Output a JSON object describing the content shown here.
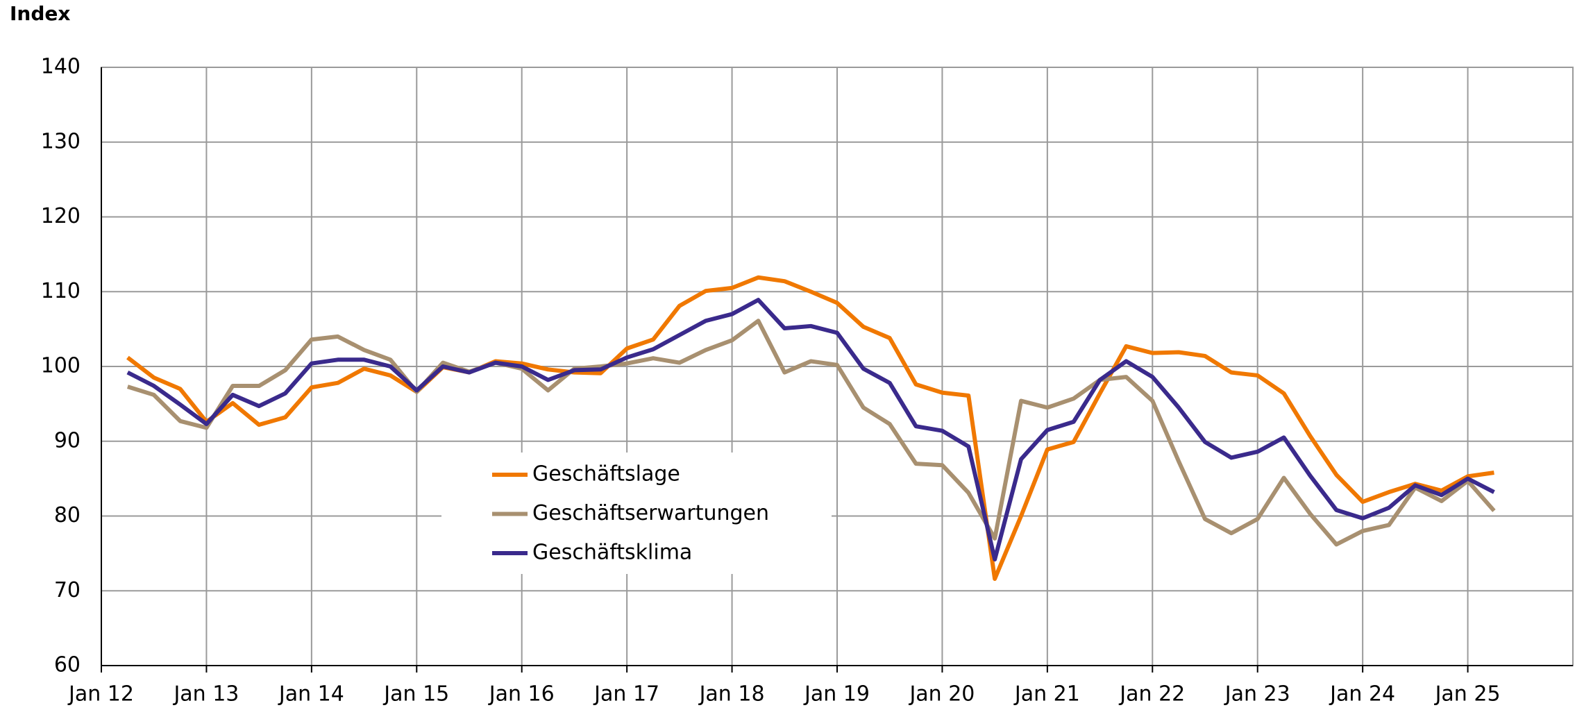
{
  "chart_data": {
    "type": "line",
    "y_axis_label": "Index",
    "x": [
      2012.25,
      2012.5,
      2012.75,
      2013.0,
      2013.25,
      2013.5,
      2013.75,
      2014.0,
      2014.25,
      2014.5,
      2014.75,
      2015.0,
      2015.25,
      2015.5,
      2015.75,
      2016.0,
      2016.25,
      2016.5,
      2016.75,
      2017.0,
      2017.25,
      2017.5,
      2017.75,
      2018.0,
      2018.25,
      2018.5,
      2018.75,
      2019.0,
      2019.25,
      2019.5,
      2019.75,
      2020.0,
      2020.25,
      2020.5,
      2020.75,
      2021.0,
      2021.25,
      2021.5,
      2021.75,
      2022.0,
      2022.25,
      2022.5,
      2022.75,
      2023.0,
      2023.25,
      2023.5,
      2023.75,
      2024.0,
      2024.25,
      2024.5,
      2024.75,
      2025.0,
      2025.25
    ],
    "series": [
      {
        "name": "Geschäftslage",
        "color": "#f07800",
        "values": [
          101.2,
          98.5,
          97,
          92.6,
          95.1,
          92.2,
          93.2,
          97.2,
          97.8,
          99.7,
          98.8,
          96.6,
          99.9,
          99.2,
          100.7,
          100.4,
          99.6,
          99.2,
          99.1,
          102.4,
          103.6,
          108.1,
          110.1,
          110.5,
          111.9,
          111.4,
          110,
          108.5,
          105.3,
          103.8,
          97.6,
          96.5,
          96.1,
          71.6,
          80,
          88.9,
          89.9,
          96.4,
          102.7,
          101.8,
          101.9,
          101.4,
          99.2,
          98.8,
          96.4,
          90.7,
          85.5,
          81.9,
          83.2,
          84.3,
          83.4,
          85.3,
          85.8
        ]
      },
      {
        "name": "Geschäftserwartungen",
        "color": "#a89070",
        "values": [
          97.3,
          96.2,
          92.7,
          91.8,
          97.4,
          97.4,
          99.5,
          103.6,
          104,
          102.2,
          100.9,
          96.6,
          100.5,
          99.3,
          100.5,
          99.7,
          96.8,
          99.7,
          100,
          100.4,
          101.1,
          100.5,
          102.2,
          103.5,
          106.1,
          99.2,
          100.7,
          100.2,
          94.5,
          92.3,
          87,
          86.8,
          83.1,
          77,
          95.4,
          94.5,
          95.7,
          98.2,
          98.6,
          95.4,
          87.3,
          79.6,
          77.7,
          79.6,
          85.1,
          80.3,
          76.2,
          78,
          78.8,
          83.8,
          82,
          84.7,
          80.7
        ]
      },
      {
        "name": "Geschäftsklima",
        "color": "#3a2a8c",
        "values": [
          99.2,
          97.4,
          94.9,
          92.3,
          96.2,
          94.7,
          96.4,
          100.4,
          100.9,
          100.9,
          100,
          96.8,
          100,
          99.2,
          100.5,
          100,
          98.2,
          99.5,
          99.6,
          101.2,
          102.3,
          104.2,
          106.1,
          107,
          108.9,
          105.1,
          105.4,
          104.5,
          99.7,
          97.8,
          92,
          91.4,
          89.3,
          74.2,
          87.6,
          91.5,
          92.6,
          98.2,
          100.7,
          98.6,
          94.5,
          89.9,
          87.8,
          88.6,
          90.5,
          85.4,
          80.8,
          79.7,
          81.1,
          84.1,
          82.8,
          85,
          83.2
        ]
      }
    ],
    "xlim": [
      2012,
      2026
    ],
    "xticks": [
      {
        "value": 2012,
        "label": "Jan 12"
      },
      {
        "value": 2013,
        "label": "Jan 13"
      },
      {
        "value": 2014,
        "label": "Jan 14"
      },
      {
        "value": 2015,
        "label": "Jan 15"
      },
      {
        "value": 2016,
        "label": "Jan 16"
      },
      {
        "value": 2017,
        "label": "Jan 17"
      },
      {
        "value": 2018,
        "label": "Jan 18"
      },
      {
        "value": 2019,
        "label": "Jan 19"
      },
      {
        "value": 2020,
        "label": "Jan 20"
      },
      {
        "value": 2021,
        "label": "Jan 21"
      },
      {
        "value": 2022,
        "label": "Jan 22"
      },
      {
        "value": 2023,
        "label": "Jan 23"
      },
      {
        "value": 2024,
        "label": "Jan 24"
      },
      {
        "value": 2025,
        "label": "Jan 25"
      }
    ],
    "ylim": [
      60,
      140
    ],
    "yticks": [
      60,
      70,
      80,
      90,
      100,
      110,
      120,
      130,
      140
    ],
    "grid": true
  }
}
